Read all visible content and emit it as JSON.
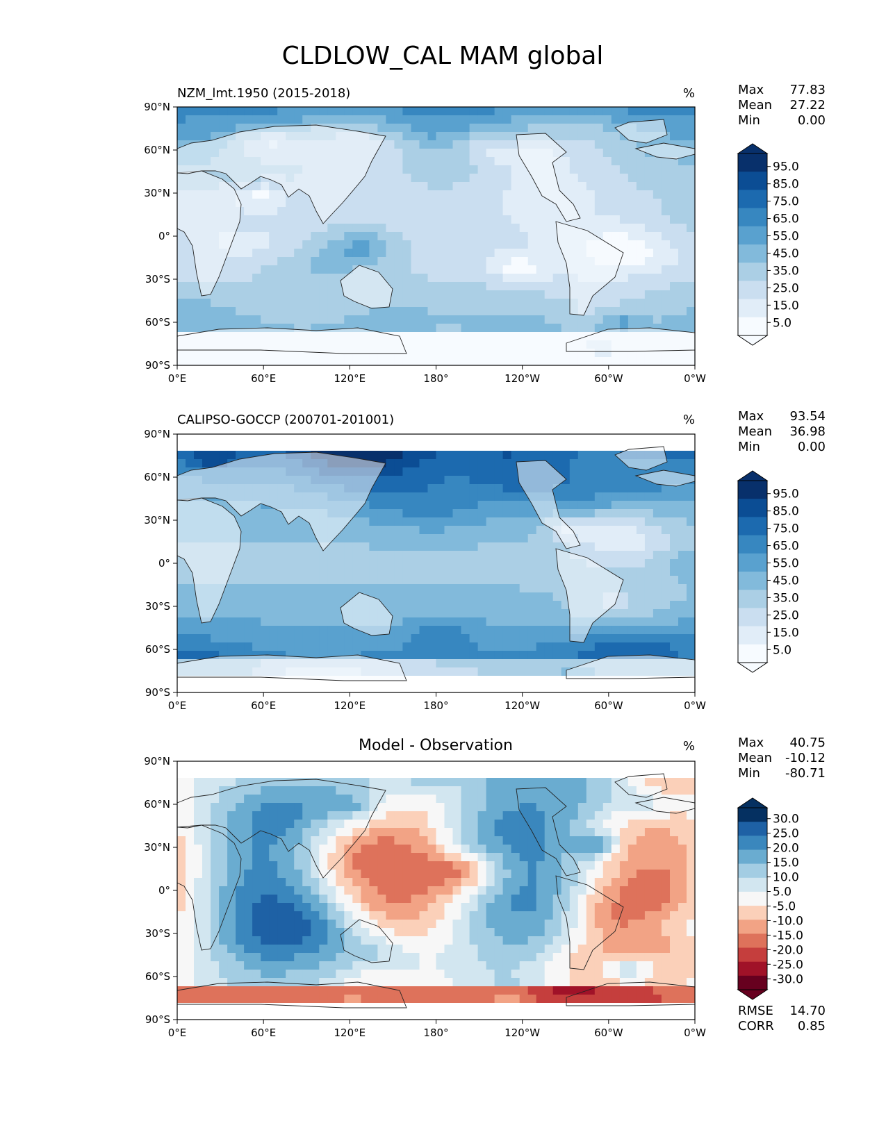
{
  "figure": {
    "title": "CLDLOW_CAL MAM global"
  },
  "axes": {
    "lat_ticks": [
      "90°N",
      "60°N",
      "30°N",
      "0°",
      "30°S",
      "60°S",
      "90°S"
    ],
    "lon_ticks": [
      "0°E",
      "60°E",
      "120°E",
      "180°",
      "120°W",
      "60°W",
      "0°W"
    ]
  },
  "units_symbol": "%",
  "stat_labels": {
    "max": "Max",
    "mean": "Mean",
    "min": "Min",
    "rmse": "RMSE",
    "corr": "CORR"
  },
  "panels": [
    {
      "id": "model",
      "title_left": "NZM_lmt.1950 (2015-2018)",
      "title_center": "",
      "stats": {
        "max": "77.83",
        "mean": "27.22",
        "min": "0.00"
      },
      "colorbar_ticks": [
        "95.0",
        "85.0",
        "75.0",
        "65.0",
        "55.0",
        "45.0",
        "35.0",
        "25.0",
        "15.0",
        "5.0"
      ]
    },
    {
      "id": "obs",
      "title_left": "CALIPSO-GOCCP (200701-201001)",
      "title_center": "",
      "stats": {
        "max": "93.54",
        "mean": "36.98",
        "min": "0.00"
      },
      "colorbar_ticks": [
        "95.0",
        "85.0",
        "75.0",
        "65.0",
        "55.0",
        "45.0",
        "35.0",
        "25.0",
        "15.0",
        "5.0"
      ]
    },
    {
      "id": "diff",
      "title_left": "",
      "title_center": "Model - Observation",
      "stats": {
        "max": "40.75",
        "mean": "-10.12",
        "min": "-80.71"
      },
      "colorbar_ticks": [
        "30.0",
        "25.0",
        "20.0",
        "15.0",
        "10.0",
        "5.0",
        "-5.0",
        "-10.0",
        "-15.0",
        "-20.0",
        "-25.0",
        "-30.0"
      ],
      "metrics": {
        "rmse": "14.70",
        "corr": "0.85"
      }
    }
  ],
  "colors": {
    "blues": [
      "#f7fbff",
      "#e1edf8",
      "#cadef0",
      "#abcfe5",
      "#82badb",
      "#59a1cf",
      "#3787c0",
      "#1c6aaf",
      "#0b4d94",
      "#08306b"
    ],
    "rdbu": [
      "#67001f",
      "#a01228",
      "#c53e3d",
      "#de725b",
      "#f2a385",
      "#fbd0b9",
      "#f7f7f7",
      "#d2e6f0",
      "#a3cde3",
      "#6aacd0",
      "#3a87bd",
      "#1e61a5",
      "#053061"
    ],
    "land": "#f5f9fd",
    "coast": "#222222"
  }
}
